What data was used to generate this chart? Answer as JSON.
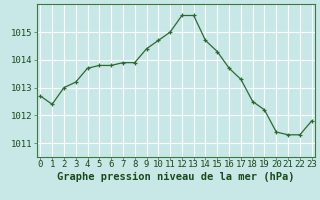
{
  "x": [
    0,
    1,
    2,
    3,
    4,
    5,
    6,
    7,
    8,
    9,
    10,
    11,
    12,
    13,
    14,
    15,
    16,
    17,
    18,
    19,
    20,
    21,
    22,
    23
  ],
  "y": [
    1012.7,
    1012.4,
    1013.0,
    1013.2,
    1013.7,
    1013.8,
    1013.8,
    1013.9,
    1013.9,
    1014.4,
    1014.7,
    1015.0,
    1015.6,
    1015.6,
    1014.7,
    1014.3,
    1013.7,
    1013.3,
    1012.5,
    1012.2,
    1011.4,
    1011.3,
    1011.3,
    1011.8
  ],
  "line_color": "#2d6a2d",
  "marker_color": "#2d6a2d",
  "bg_color": "#c8e8e8",
  "grid_color": "#ffffff",
  "border_color": "#3a7a3a",
  "xlabel": "Graphe pression niveau de la mer (hPa)",
  "xlabel_color": "#1a4a1a",
  "ylim": [
    1010.5,
    1016.0
  ],
  "yticks": [
    1011,
    1012,
    1013,
    1014,
    1015
  ],
  "xticks": [
    0,
    1,
    2,
    3,
    4,
    5,
    6,
    7,
    8,
    9,
    10,
    11,
    12,
    13,
    14,
    15,
    16,
    17,
    18,
    19,
    20,
    21,
    22,
    23
  ],
  "xlim": [
    -0.3,
    23.3
  ],
  "font_size_xlabel": 7.5,
  "font_size_ticks": 6.5
}
